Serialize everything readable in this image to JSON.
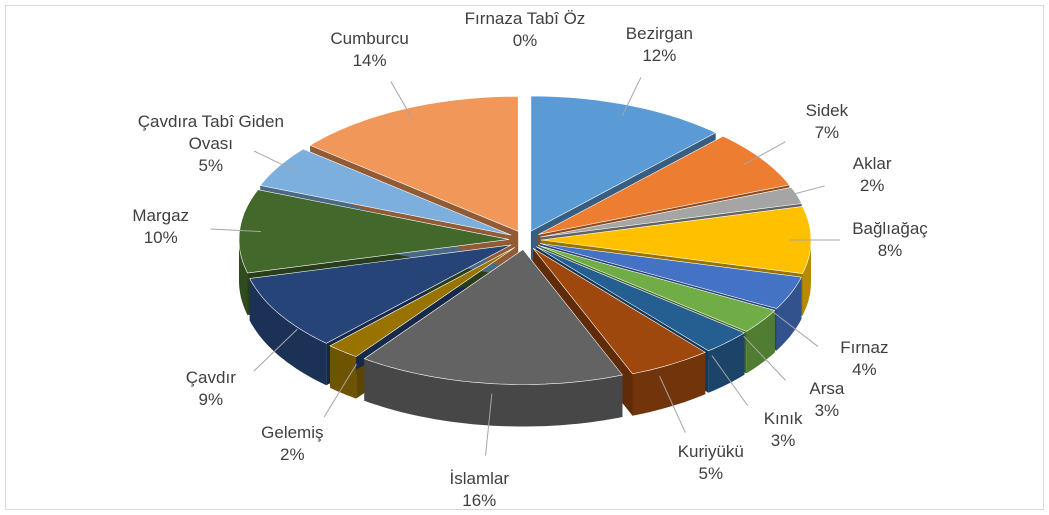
{
  "chart_data": {
    "type": "pie3d",
    "categories": [
      "Bezirgan",
      "Sidek",
      "Aklar",
      "Bağlıağaç",
      "Fırnaz",
      "Arsa",
      "Kınık",
      "Kuriyükü",
      "İslamlar",
      "Gelemiş",
      "Çavdır",
      "Margaz",
      "Çavdıra Tabî Giden Ovası",
      "Cumburcu",
      "Fırnaza Tabî Öz"
    ],
    "values": [
      12,
      7,
      2,
      8,
      4,
      3,
      3,
      5,
      16,
      2,
      9,
      10,
      5,
      14,
      0
    ],
    "value_labels": [
      "12%",
      "7%",
      "2%",
      "8%",
      "4%",
      "3%",
      "3%",
      "5%",
      "16%",
      "2%",
      "9%",
      "10%",
      "5%",
      "14%",
      "0%"
    ],
    "colors": [
      "#5b9bd5",
      "#ed7d31",
      "#a5a5a5",
      "#ffc000",
      "#4472c4",
      "#70ad47",
      "#255e91",
      "#9e480e",
      "#636363",
      "#997300",
      "#264478",
      "#43682b",
      "#7cafdd",
      "#f1975a",
      "#b7b7b7"
    ]
  }
}
